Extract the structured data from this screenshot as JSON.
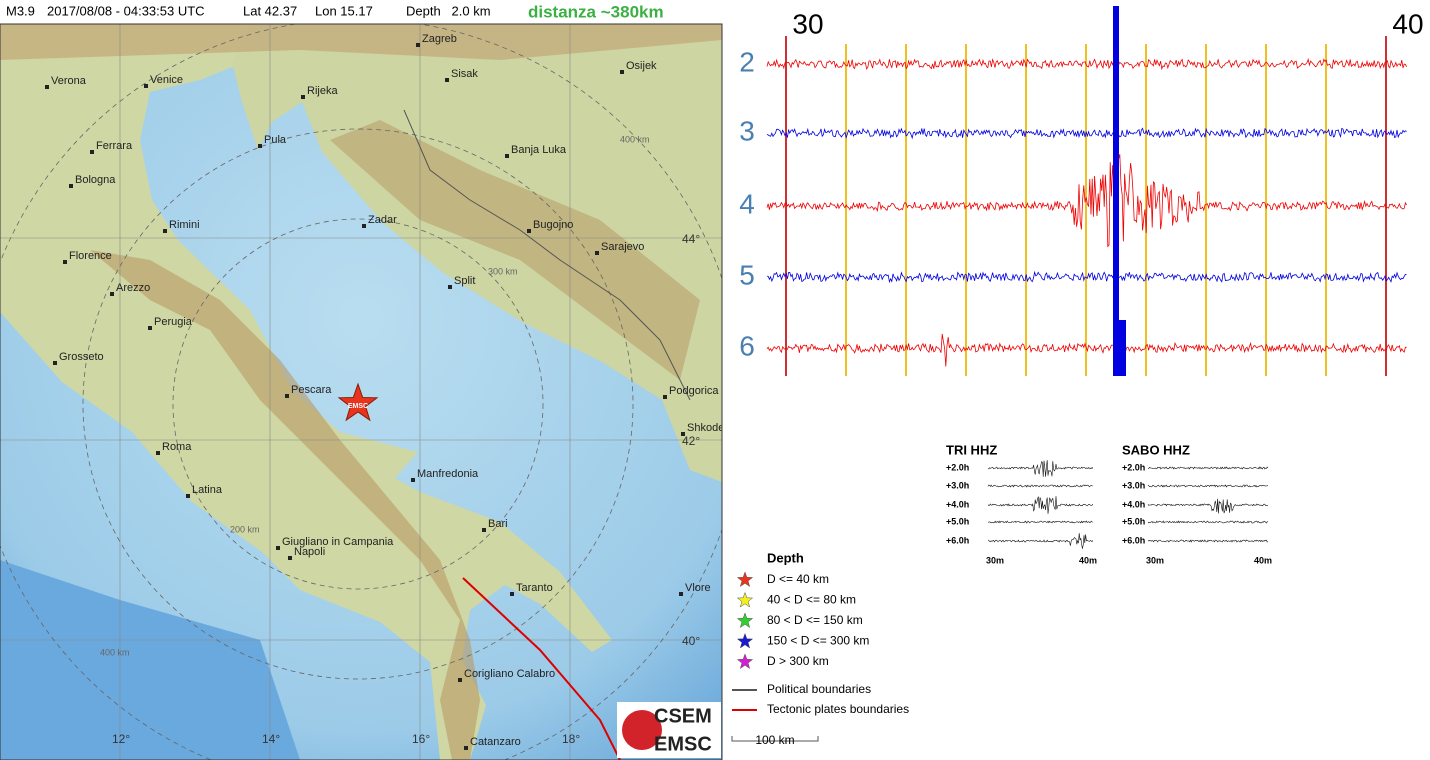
{
  "header": {
    "magnitude": "M3.9",
    "datetime": "2017/08/08 - 04:33:53 UTC",
    "lat": "Lat 42.37",
    "lon": "Lon 15.17",
    "depth": "Depth   2.0 km",
    "distance": "distanza ~380km"
  },
  "map": {
    "star_label": "EMSC",
    "cities": [
      "Zagreb",
      "Verona",
      "Venice",
      "Sisak",
      "Osijek",
      "Rijeka",
      "Pula",
      "Ferrara",
      "Banja Luka",
      "Bologna",
      "Rimini",
      "Zadar",
      "Bugojno",
      "Sarajevo",
      "Florence",
      "Split",
      "Arezzo",
      "Perugia",
      "Grosseto",
      "Podgorica",
      "Pescara",
      "Shkoder",
      "Roma",
      "Manfredonia",
      "Latina",
      "Bari",
      "Giugliano in Campania",
      "Napoli",
      "Taranto",
      "Vlore",
      "Corigliano Calabro",
      "Catanzaro"
    ],
    "lon_labels": [
      "12°",
      "14°",
      "16°",
      "18°"
    ],
    "lat_labels": [
      "44°",
      "42°",
      "40°"
    ],
    "ring_labels": [
      "200 km",
      "300 km",
      "400 km",
      "400 km"
    ]
  },
  "legend": {
    "title": "Depth",
    "depth_entries": [
      "D <= 40 km",
      "40 < D <= 80 km",
      "80 < D <= 150 km",
      "150 < D <= 300 km",
      "D > 300 km"
    ],
    "lines": [
      "Political boundaries",
      "Tectonic plates boundaries"
    ],
    "scale": "100 km"
  },
  "logo": {
    "top": "CSEM",
    "bottom": "EMSC"
  },
  "seismogram": {
    "minute_labels": [
      "30",
      "40"
    ],
    "rows": [
      "2",
      "3",
      "4",
      "5",
      "6"
    ]
  },
  "helicorders": [
    {
      "title": "TRI HHZ",
      "rows": [
        "+2.0h",
        "+3.0h",
        "+4.0h",
        "+5.0h",
        "+6.0h"
      ],
      "axis": [
        "30m",
        "40m"
      ]
    },
    {
      "title": "SABO HHZ",
      "rows": [
        "+2.0h",
        "+3.0h",
        "+4.0h",
        "+5.0h",
        "+6.0h"
      ],
      "axis": [
        "30m",
        "40m"
      ]
    }
  ]
}
